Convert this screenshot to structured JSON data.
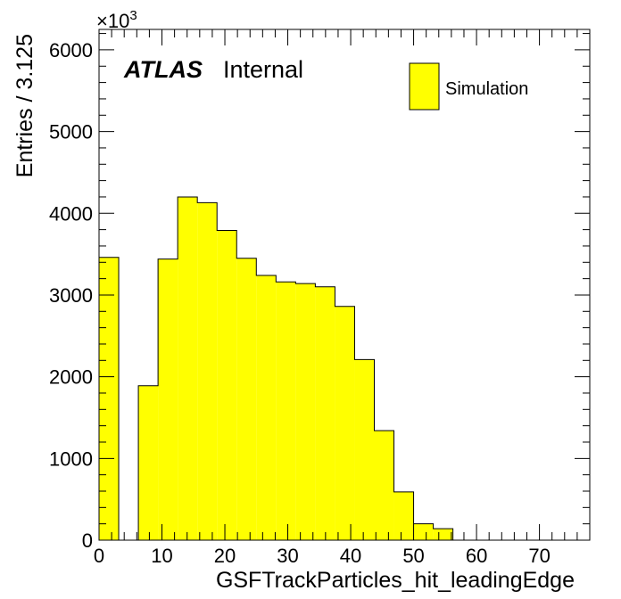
{
  "chart_data": {
    "type": "bar",
    "xlabel": "GSFTrackParticles_hit_leadingEdge",
    "ylabel": "Entries / 3.125",
    "y_multiplier_label": "×10",
    "y_multiplier_exponent": "3",
    "xlim": [
      0,
      78
    ],
    "ylim": [
      0,
      6250
    ],
    "xticks": [
      0,
      10,
      20,
      30,
      40,
      50,
      60,
      70
    ],
    "xtick_labels": [
      "0",
      "10",
      "20",
      "30",
      "40",
      "50",
      "60",
      "70"
    ],
    "yticks": [
      0,
      1000,
      2000,
      3000,
      4000,
      5000,
      6000
    ],
    "ytick_labels": [
      "0",
      "1000",
      "2000",
      "3000",
      "4000",
      "5000",
      "6000"
    ],
    "bin_width": 3.125,
    "bin_edges": [
      0,
      3.125,
      6.25,
      9.375,
      12.5,
      15.625,
      18.75,
      21.875,
      25,
      28.125,
      31.25,
      34.375,
      37.5,
      40.625,
      43.75,
      46.875,
      50,
      53.125,
      56.25,
      59.375,
      62.5,
      65.625,
      68.75,
      71.875,
      75,
      78.125
    ],
    "values": [
      3460,
      0,
      1890,
      3440,
      4200,
      4130,
      3790,
      3450,
      3240,
      3160,
      3140,
      3100,
      2860,
      2210,
      1340,
      590,
      200,
      140,
      0,
      0,
      0,
      0,
      0,
      0,
      0
    ],
    "series": [
      {
        "name": "Simulation",
        "color": "#ffff00"
      }
    ],
    "legend_position": "top-right",
    "grid": false
  },
  "annotations": {
    "experiment": "ATLAS",
    "status": "Internal"
  },
  "colors": {
    "fill": "#ffff00",
    "line": "#000000"
  }
}
